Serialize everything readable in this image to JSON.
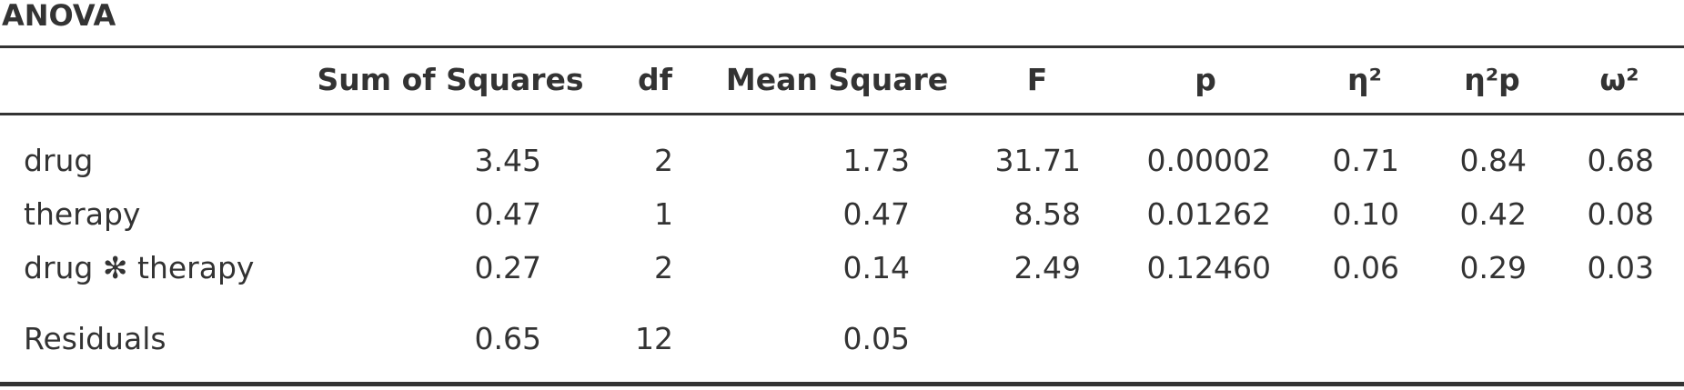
{
  "title": "ANOVA",
  "columns": [
    "",
    "Sum of Squares",
    "df",
    "Mean Square",
    "F",
    "p",
    "η²",
    "η²p",
    "ω²"
  ],
  "rows": [
    [
      "drug",
      "3.45",
      "2",
      "1.73",
      "31.71",
      "0.00002",
      "0.71",
      "0.84",
      "0.68"
    ],
    [
      "therapy",
      "0.47",
      "1",
      "0.47",
      "8.58",
      "0.01262",
      "0.10",
      "0.42",
      "0.08"
    ],
    [
      "drug ✻ therapy",
      "0.27",
      "2",
      "0.14",
      "2.49",
      "0.12460",
      "0.06",
      "0.29",
      "0.03"
    ],
    [
      "Residuals",
      "0.65",
      "12",
      "0.05",
      "",
      "",
      "",
      "",
      ""
    ]
  ]
}
